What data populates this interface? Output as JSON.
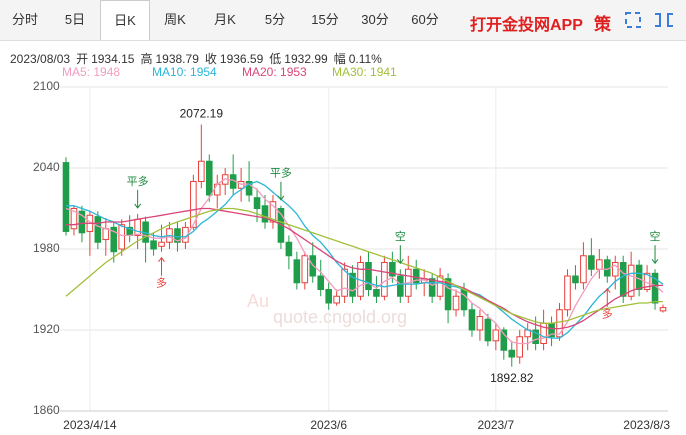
{
  "tabs": [
    "分时",
    "5日",
    "日K",
    "周K",
    "月K",
    "5分",
    "15分",
    "30分",
    "60分"
  ],
  "active_tab": 2,
  "brand": "打开金投网APP",
  "icon_text": "策",
  "quote": {
    "date": "2023/08/03",
    "items": [
      {
        "label": "开",
        "value": "1934.15"
      },
      {
        "label": "高",
        "value": "1938.79"
      },
      {
        "label": "收",
        "value": "1936.59"
      },
      {
        "label": "低",
        "value": "1932.99"
      },
      {
        "label": "幅",
        "value": "0.11%"
      }
    ]
  },
  "watermark": [
    "Au",
    "quote.cngold.org"
  ],
  "chart_data": {
    "type": "candlestick",
    "categories": [
      null,
      null,
      null,
      "2023/4/14",
      null,
      null,
      null,
      null,
      null,
      null,
      null,
      null,
      null,
      null,
      null,
      null,
      null,
      null,
      null,
      null,
      null,
      null,
      null,
      null,
      null,
      null,
      null,
      null,
      null,
      null,
      null,
      null,
      null,
      "2023/6",
      null,
      null,
      null,
      null,
      null,
      null,
      null,
      null,
      null,
      null,
      null,
      null,
      null,
      null,
      null,
      null,
      null,
      null,
      null,
      null,
      "2023/7",
      null,
      null,
      null,
      null,
      null,
      null,
      null,
      null,
      null,
      null,
      null,
      null,
      null,
      null,
      null,
      null,
      null,
      null,
      null,
      null,
      "2023/8/3"
    ],
    "open": [
      2044,
      1995,
      2008,
      1993,
      2004,
      1987,
      1996,
      1980,
      1996,
      1990,
      2000,
      1986,
      1982,
      1985,
      1995,
      1985,
      1996,
      2030,
      2045,
      2020,
      2028,
      2035,
      2025,
      2030,
      2018,
      2012,
      2000,
      2010,
      1985,
      1972,
      1955,
      1975,
      1960,
      1950,
      1940,
      1945,
      1962,
      1945,
      1970,
      1950,
      1945,
      1970,
      1960,
      1945,
      1965,
      1955,
      1958,
      1945,
      1958,
      1935,
      1950,
      1935,
      1920,
      1928,
      1912,
      1920,
      1905,
      1900,
      1915,
      1920,
      1910,
      1925,
      1915,
      1935,
      1960,
      1955,
      1975,
      1965,
      1972,
      1960,
      1970,
      1945,
      1968,
      1950,
      1962,
      1934.15
    ],
    "close": [
      1993,
      2010,
      1992,
      2005,
      1985,
      1995,
      1978,
      1998,
      1990,
      2002,
      1985,
      1980,
      1985,
      1995,
      1985,
      1996,
      2030,
      2045,
      2020,
      2028,
      2035,
      2025,
      2030,
      2020,
      2010,
      2000,
      2015,
      1985,
      1975,
      1955,
      1975,
      1960,
      1950,
      1940,
      1945,
      1965,
      1945,
      1970,
      1950,
      1945,
      1970,
      1960,
      1945,
      1965,
      1955,
      1958,
      1945,
      1960,
      1935,
      1945,
      1935,
      1920,
      1930,
      1912,
      1920,
      1905,
      1900,
      1915,
      1920,
      1910,
      1925,
      1915,
      1935,
      1960,
      1955,
      1975,
      1965,
      1972,
      1960,
      1970,
      1945,
      1968,
      1950,
      1962,
      1940,
      1936.59
    ],
    "high": [
      2048,
      2012,
      2012,
      2008,
      2008,
      2003,
      2000,
      2002,
      2005,
      2006,
      2004,
      1992,
      1998,
      2000,
      2000,
      2000,
      2035,
      2072.19,
      2050,
      2035,
      2040,
      2050,
      2040,
      2045,
      2025,
      2020,
      2020,
      2012,
      1990,
      1978,
      1978,
      1985,
      1972,
      1955,
      1950,
      1970,
      1968,
      1975,
      1978,
      1960,
      1975,
      1978,
      1965,
      1975,
      1972,
      1965,
      1962,
      1966,
      1962,
      1950,
      1955,
      1940,
      1935,
      1932,
      1925,
      1922,
      1912,
      1920,
      1925,
      1930,
      1935,
      1930,
      1940,
      1965,
      1968,
      1985,
      1988,
      1980,
      1975,
      1975,
      1975,
      1978,
      1972,
      1968,
      1965,
      1938.79
    ],
    "low": [
      1990,
      1990,
      1985,
      1975,
      1980,
      1975,
      1970,
      1975,
      1985,
      1980,
      1970,
      1975,
      1978,
      1980,
      1978,
      1980,
      1994,
      2025,
      2015,
      2010,
      2020,
      2020,
      2015,
      2015,
      2000,
      1995,
      1995,
      1980,
      1965,
      1950,
      1950,
      1955,
      1945,
      1935,
      1938,
      1940,
      1940,
      1942,
      1945,
      1940,
      1942,
      1955,
      1940,
      1940,
      1950,
      1945,
      1940,
      1942,
      1925,
      1930,
      1930,
      1915,
      1912,
      1908,
      1905,
      1898,
      1892.82,
      1895,
      1905,
      1905,
      1905,
      1908,
      1912,
      1930,
      1950,
      1950,
      1960,
      1958,
      1955,
      1950,
      1940,
      1942,
      1945,
      1948,
      1935,
      1932.99
    ],
    "up_color": "#e8403b",
    "down_color": "#1f9d4a",
    "series": [
      {
        "name": "MA5: 1948",
        "color": "#f29cc0",
        "values": [
          2010,
          2008,
          2005,
          2000,
          1997,
          1995,
          1993,
          1990,
          1990,
          1991,
          1990,
          1988,
          1988,
          1989,
          1986,
          1988,
          1998,
          2010,
          2018,
          2028,
          2032,
          2031,
          2028,
          2028,
          2024,
          2017,
          2012,
          2006,
          1997,
          1988,
          1977,
          1968,
          1963,
          1956,
          1949,
          1951,
          1949,
          1953,
          1955,
          1951,
          1956,
          1959,
          1954,
          1955,
          1957,
          1957,
          1953,
          1956,
          1951,
          1949,
          1946,
          1940,
          1936,
          1930,
          1925,
          1917,
          1911,
          1910,
          1910,
          1913,
          1914,
          1917,
          1917,
          1926,
          1938,
          1948,
          1958,
          1965,
          1965,
          1968,
          1962,
          1960,
          1958,
          1955,
          1953,
          1948
        ]
      },
      {
        "name": "MA10: 1954",
        "color": "#2bb6d8",
        "values": [
          2012,
          2012,
          2010,
          2008,
          2005,
          2002,
          2000,
          1997,
          1995,
          1993,
          1992,
          1990,
          1989,
          1990,
          1989,
          1989,
          1993,
          1999,
          2003,
          2008,
          2013,
          2020,
          2024,
          2028,
          2030,
          2027,
          2022,
          2017,
          2012,
          2006,
          1997,
          1990,
          1985,
          1978,
          1970,
          1964,
          1959,
          1957,
          1955,
          1953,
          1952,
          1953,
          1954,
          1954,
          1954,
          1955,
          1955,
          1955,
          1953,
          1952,
          1950,
          1948,
          1946,
          1942,
          1938,
          1933,
          1928,
          1924,
          1920,
          1918,
          1915,
          1914,
          1914,
          1918,
          1924,
          1930,
          1938,
          1945,
          1950,
          1956,
          1960,
          1962,
          1962,
          1961,
          1958,
          1954
        ]
      },
      {
        "name": "MA20: 1953",
        "color": "#d9467a",
        "values": [
          1998,
          1998,
          1999,
          1999,
          1999,
          2000,
          2000,
          2000,
          2001,
          2002,
          2003,
          2004,
          2005,
          2006,
          2007,
          2008,
          2009,
          2010,
          2010,
          2009,
          2008,
          2007,
          2006,
          2005,
          2004,
          2003,
          2001,
          1998,
          1995,
          1991,
          1987,
          1983,
          1979,
          1975,
          1971,
          1968,
          1966,
          1965,
          1965,
          1964,
          1963,
          1962,
          1961,
          1960,
          1959,
          1958,
          1957,
          1956,
          1955,
          1953,
          1951,
          1948,
          1945,
          1942,
          1939,
          1936,
          1932,
          1929,
          1926,
          1924,
          1922,
          1921,
          1921,
          1922,
          1924,
          1927,
          1931,
          1935,
          1939,
          1943,
          1946,
          1949,
          1951,
          1952,
          1953,
          1953
        ]
      },
      {
        "name": "MA30: 1941",
        "color": "#a2c03a",
        "values": [
          1945,
          1950,
          1955,
          1960,
          1965,
          1970,
          1974,
          1978,
          1982,
          1986,
          1989,
          1992,
          1995,
          1998,
          2000,
          2002,
          2004,
          2006,
          2008,
          2009,
          2010,
          2010,
          2009,
          2008,
          2006,
          2004,
          2002,
          2000,
          1998,
          1996,
          1994,
          1992,
          1990,
          1988,
          1986,
          1984,
          1982,
          1980,
          1978,
          1976,
          1974,
          1972,
          1970,
          1968,
          1966,
          1964,
          1962,
          1959,
          1956,
          1953,
          1950,
          1947,
          1944,
          1941,
          1938,
          1935,
          1932,
          1930,
          1928,
          1926,
          1925,
          1925,
          1926,
          1927,
          1929,
          1931,
          1933,
          1935,
          1936,
          1937,
          1938,
          1939,
          1940,
          1940,
          1941,
          1941
        ]
      }
    ],
    "ylim": [
      1860,
      2100
    ],
    "yticks": [
      1860,
      1920,
      1980,
      2040,
      2100
    ],
    "grid": true,
    "signals": [
      {
        "text": "平多",
        "index": 9,
        "side": "above",
        "color": "#1f8a40"
      },
      {
        "text": "多",
        "index": 12,
        "side": "below",
        "color": "#e8403b"
      },
      {
        "text": "平多",
        "index": 27,
        "side": "above",
        "color": "#1f8a40"
      },
      {
        "text": "空",
        "index": 42,
        "side": "above",
        "color": "#1f8a40"
      },
      {
        "text": "多",
        "index": 68,
        "side": "below",
        "color": "#e8403b"
      },
      {
        "text": "空",
        "index": 74,
        "side": "above",
        "color": "#1f8a40"
      }
    ],
    "extremes": [
      {
        "index": 17,
        "field": "high"
      },
      {
        "index": 56,
        "field": "low"
      }
    ]
  }
}
